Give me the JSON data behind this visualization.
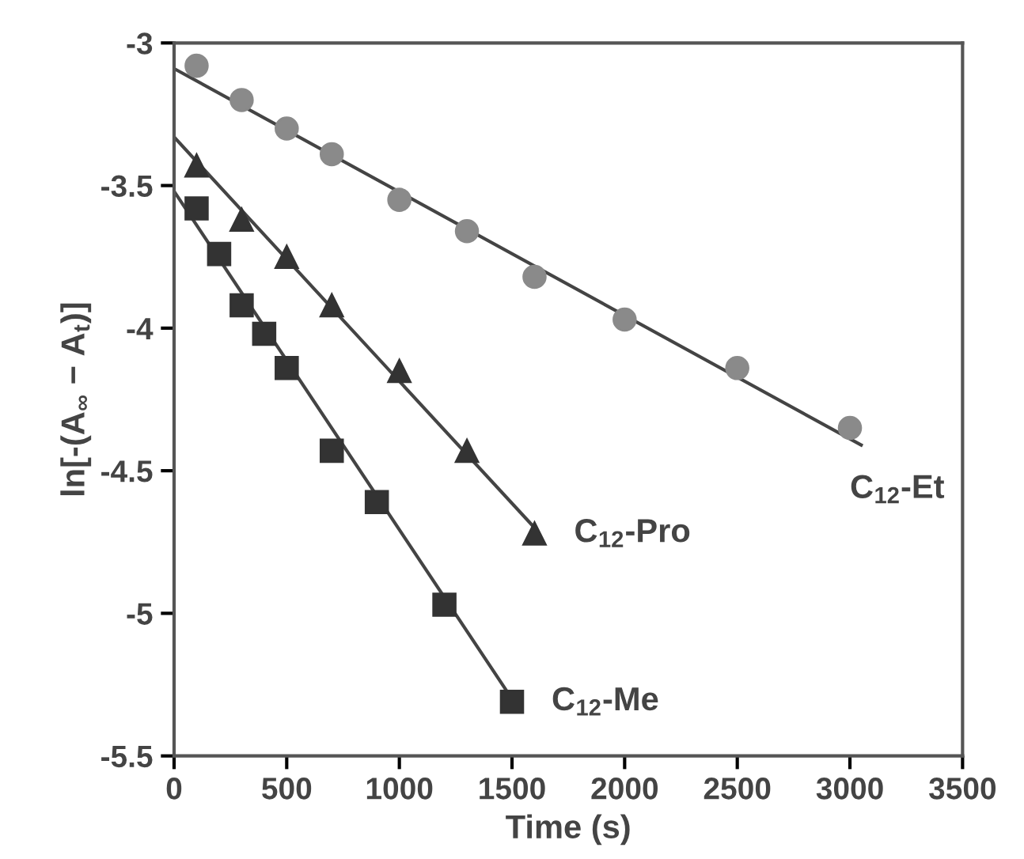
{
  "chart_data": {
    "type": "scatter",
    "xlabel": "Time (s)",
    "ylabel": "ln[-(A$_{∞}$ − A$_{t}$)]",
    "xlim": [
      0,
      3500
    ],
    "ylim": [
      -5.5,
      -3
    ],
    "xticks": [
      0,
      500,
      1000,
      1500,
      2000,
      2500,
      3000,
      3500
    ],
    "yticks": [
      -5.5,
      -5,
      -4.5,
      -4,
      -3.5,
      -3
    ],
    "grid": false,
    "legend": false,
    "series": [
      {
        "name": "C$_{12}$-Et",
        "marker": "circle",
        "color": "#8a8a8a",
        "x": [
          100,
          300,
          500,
          700,
          1000,
          1300,
          1600,
          2000,
          2500,
          3000
        ],
        "values": [
          -3.08,
          -3.2,
          -3.3,
          -3.39,
          -3.55,
          -3.66,
          -3.82,
          -3.97,
          -4.14,
          -4.35
        ]
      },
      {
        "name": "C$_{12}$-Pro",
        "marker": "triangle",
        "color": "#333333",
        "x": [
          100,
          300,
          500,
          700,
          1000,
          1300,
          1600
        ],
        "values": [
          -3.43,
          -3.62,
          -3.75,
          -3.92,
          -4.15,
          -4.43,
          -4.72
        ]
      },
      {
        "name": "C$_{12}$-Me",
        "marker": "square",
        "color": "#333333",
        "x": [
          100,
          200,
          300,
          400,
          500,
          700,
          900,
          1200,
          1500
        ],
        "values": [
          -3.58,
          -3.74,
          -3.92,
          -4.02,
          -4.14,
          -4.43,
          -4.61,
          -4.97,
          -5.31
        ]
      },
      {
        "type": "line",
        "marker": "none",
        "line_style": "solid",
        "color": "#444444",
        "x": [
          0,
          3050
        ],
        "values": [
          -3.09,
          -4.41
        ]
      },
      {
        "type": "line",
        "marker": "none",
        "line_style": "solid",
        "color": "#444444",
        "x": [
          0,
          1600
        ],
        "values": [
          -3.33,
          -4.7
        ]
      },
      {
        "type": "line",
        "marker": "none",
        "line_style": "solid",
        "color": "#444444",
        "x": [
          0,
          1500
        ],
        "values": [
          -3.52,
          -5.3
        ]
      }
    ]
  }
}
